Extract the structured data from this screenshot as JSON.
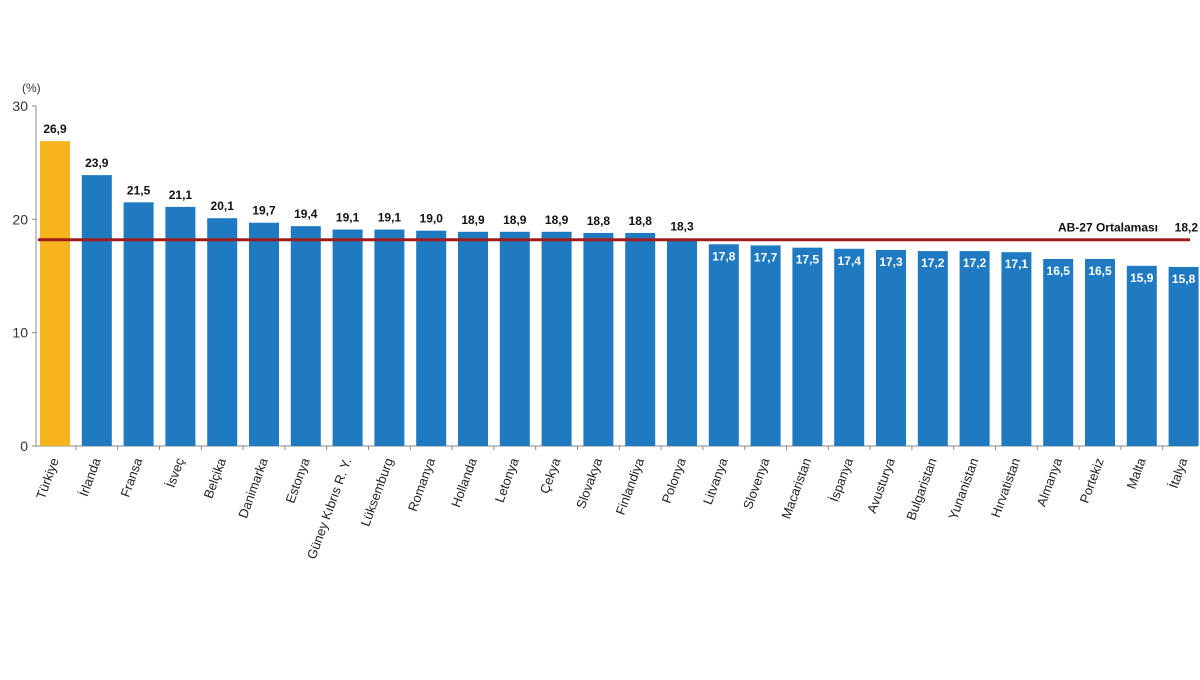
{
  "chart_data": {
    "type": "bar",
    "ylabel": "(%)",
    "ylim": [
      0,
      30
    ],
    "yticks": [
      0,
      10,
      20,
      30
    ],
    "grid": false,
    "categories": [
      "Türkiye",
      "İrlanda",
      "Fransa",
      "İsveç",
      "Belçika",
      "Danimarka",
      "Estonya",
      "Güney Kıbrıs R. Y.",
      "Lüksemburg",
      "Romanya",
      "Hollanda",
      "Letonya",
      "Çekya",
      "Slovakya",
      "Finlandiya",
      "Polonya",
      "Litvanya",
      "Slovenya",
      "Macaristan",
      "İspanya",
      "Avusturya",
      "Bulgaristan",
      "Yunanistan",
      "Hırvatistan",
      "Almanya",
      "Portekiz",
      "Malta",
      "İtalya"
    ],
    "values": [
      26.9,
      23.9,
      21.5,
      21.1,
      20.1,
      19.7,
      19.4,
      19.1,
      19.1,
      19.0,
      18.9,
      18.9,
      18.9,
      18.8,
      18.8,
      18.3,
      17.8,
      17.7,
      17.5,
      17.4,
      17.3,
      17.2,
      17.2,
      17.1,
      16.5,
      16.5,
      15.9,
      15.8
    ],
    "data_labels": [
      "26,9",
      "23,9",
      "21,5",
      "21,1",
      "20,1",
      "19,7",
      "19,4",
      "19,1",
      "19,1",
      "19,0",
      "18,9",
      "18,9",
      "18,9",
      "18,8",
      "18,8",
      "18,3",
      "17,8",
      "17,7",
      "17,5",
      "17,4",
      "17,3",
      "17,2",
      "17,2",
      "17,1",
      "16,5",
      "16,5",
      "15,9",
      "15,8"
    ],
    "highlight_index": 0,
    "reference_line": {
      "label": "AB-27 Ortalaması",
      "value": 18.2,
      "value_label": "18,2"
    },
    "colors": {
      "bar": "#1f7ac2",
      "highlight": "#f7b41c",
      "reference_line": "#a01c1c",
      "axis": "#888888"
    }
  }
}
